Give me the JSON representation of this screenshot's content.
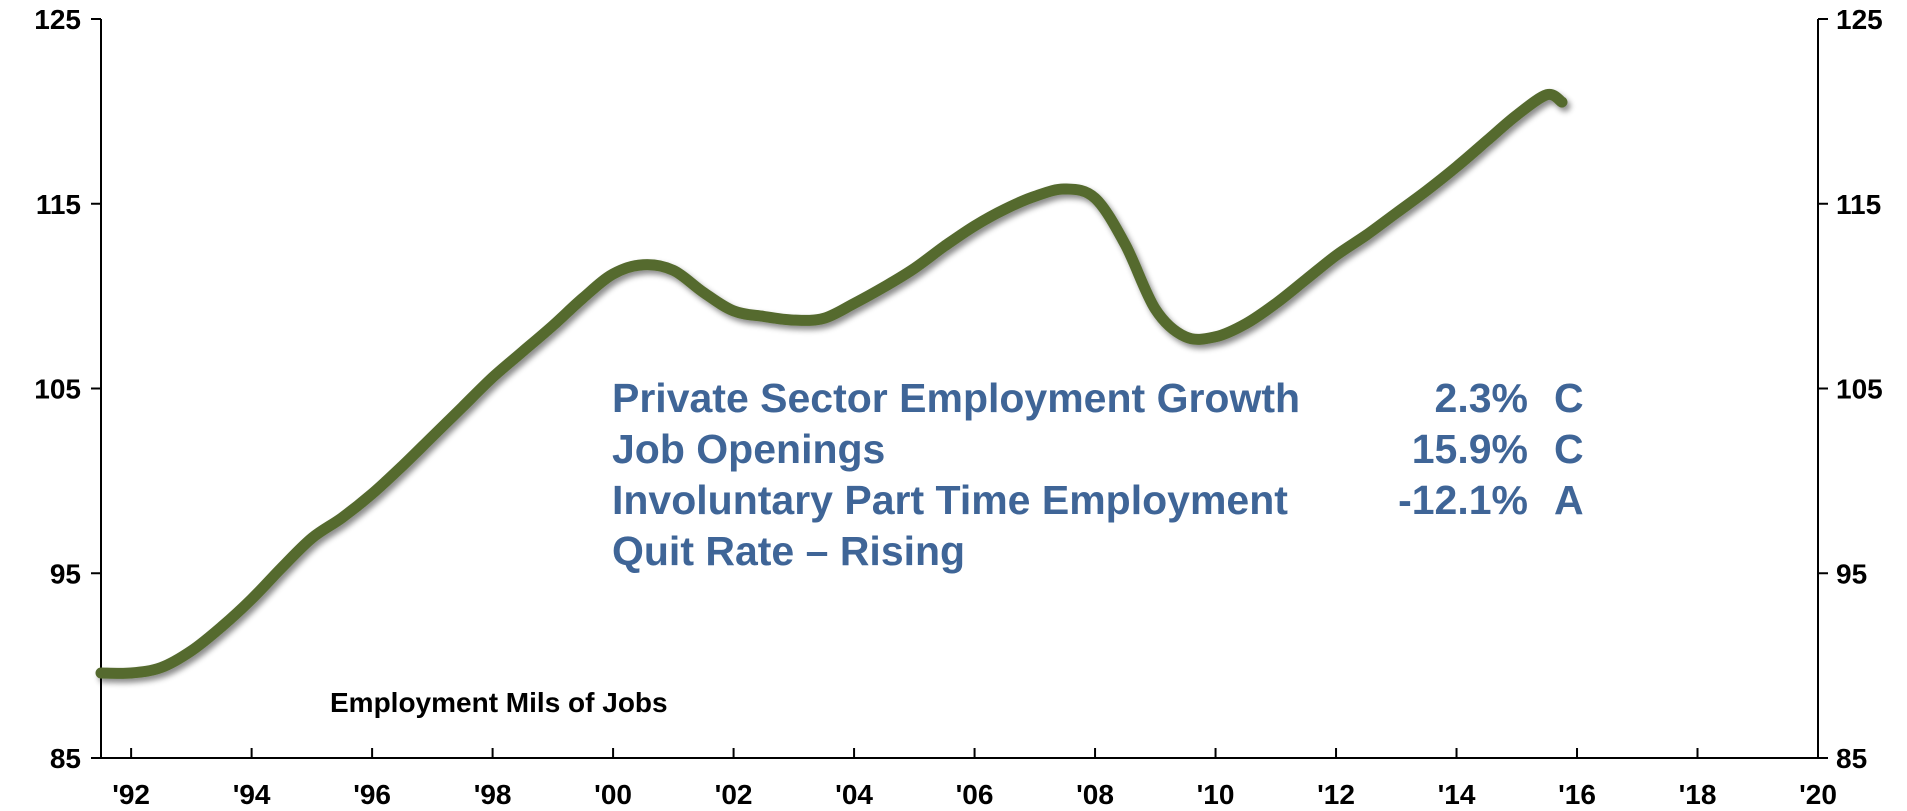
{
  "chart_data": {
    "type": "line",
    "title": "",
    "xlabel": "",
    "ylabel": "",
    "xlim": [
      1991.5,
      2020
    ],
    "ylim": [
      85,
      125
    ],
    "y_ticks": [
      85,
      95,
      105,
      115,
      125
    ],
    "y_tick_labels": [
      "85",
      "95",
      "105",
      "115",
      "125"
    ],
    "x_ticks": [
      1992,
      1994,
      1996,
      1998,
      2000,
      2002,
      2004,
      2006,
      2008,
      2010,
      2012,
      2014,
      2016,
      2018,
      2020
    ],
    "x_tick_labels": [
      "'92",
      "'94",
      "'96",
      "'98",
      "'00",
      "'02",
      "'04",
      "'06",
      "'08",
      "'10",
      "'12",
      "'14",
      "'16",
      "'18",
      "'20"
    ],
    "grid": false,
    "dual_y_axis": true,
    "legend_position": "bottom-left",
    "series": [
      {
        "name": "Employment Mils of Jobs",
        "color": "#556b2f",
        "x": [
          1991.5,
          1992.0,
          1992.5,
          1993.0,
          1993.5,
          1994.0,
          1994.5,
          1995.0,
          1995.5,
          1996.0,
          1996.5,
          1997.0,
          1997.5,
          1998.0,
          1998.5,
          1999.0,
          1999.5,
          2000.0,
          2000.5,
          2001.0,
          2001.5,
          2002.0,
          2002.5,
          2003.0,
          2003.5,
          2004.0,
          2004.5,
          2005.0,
          2005.5,
          2006.0,
          2006.5,
          2007.0,
          2007.5,
          2008.0,
          2008.5,
          2009.0,
          2009.5,
          2010.0,
          2010.5,
          2011.0,
          2011.5,
          2012.0,
          2012.5,
          2013.0,
          2013.5,
          2014.0,
          2014.5,
          2015.0,
          2015.5,
          2015.75
        ],
        "values": [
          89.6,
          89.6,
          89.9,
          90.8,
          92.1,
          93.6,
          95.3,
          96.9,
          98.0,
          99.3,
          100.8,
          102.4,
          104.0,
          105.6,
          107.0,
          108.4,
          109.9,
          111.2,
          111.7,
          111.4,
          110.2,
          109.2,
          108.9,
          108.7,
          108.8,
          109.6,
          110.5,
          111.5,
          112.7,
          113.8,
          114.7,
          115.4,
          115.8,
          115.3,
          112.8,
          109.3,
          107.8,
          107.8,
          108.5,
          109.6,
          110.9,
          112.2,
          113.3,
          114.5,
          115.7,
          117.0,
          118.4,
          119.8,
          120.9,
          120.5
        ]
      }
    ],
    "annotations": {
      "color": "#3f6597",
      "rows": [
        {
          "label": "Private Sector Employment Growth",
          "value": "2.3%",
          "grade": "C"
        },
        {
          "label": "Job Openings",
          "value": "15.9%",
          "grade": "C"
        },
        {
          "label": "Involuntary Part Time Employment",
          "value": "-12.1%",
          "grade": "A"
        },
        {
          "label": "Quit Rate – Rising",
          "value": "",
          "grade": ""
        }
      ]
    }
  }
}
